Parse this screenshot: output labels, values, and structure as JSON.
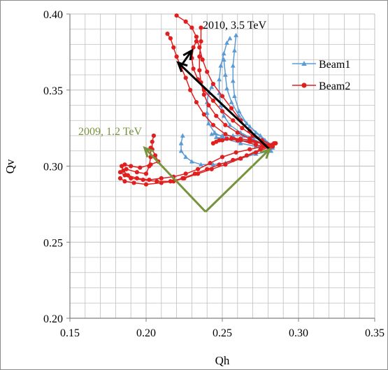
{
  "chart_data": {
    "type": "line",
    "xlabel": "Qh",
    "ylabel": "Qv",
    "xlim": [
      0.15,
      0.35
    ],
    "ylim": [
      0.2,
      0.4
    ],
    "x_major_ticks": [
      "0.15",
      "0.20",
      "0.25",
      "0.30",
      "0.35"
    ],
    "y_major_ticks": [
      "0.20",
      "0.25",
      "0.30",
      "0.35",
      "0.40"
    ],
    "grid": "major and minor (0.01 step)",
    "legend_position": "right",
    "colors": {
      "beam1": "#5b9bd5",
      "beam2": "#e0201f",
      "arrow_2010": "#000000",
      "arrow_2009": "#77933c",
      "label_2009": "#77933c",
      "grid": "#bfbfbf",
      "axis": "#808080"
    },
    "series": [
      {
        "name": "Beam1",
        "marker": "triangle",
        "color": "#5b9bd5",
        "traces": [
          [
            [
              0.282,
              0.313
            ],
            [
              0.276,
              0.315
            ],
            [
              0.27,
              0.318
            ],
            [
              0.262,
              0.322
            ],
            [
              0.255,
              0.327
            ],
            [
              0.251,
              0.333
            ],
            [
              0.249,
              0.34
            ],
            [
              0.248,
              0.348
            ],
            [
              0.248,
              0.357
            ],
            [
              0.249,
              0.366
            ],
            [
              0.251,
              0.374
            ],
            [
              0.253,
              0.381
            ],
            [
              0.255,
              0.384
            ]
          ],
          [
            [
              0.283,
              0.313
            ],
            [
              0.278,
              0.317
            ],
            [
              0.272,
              0.322
            ],
            [
              0.266,
              0.328
            ],
            [
              0.261,
              0.336
            ],
            [
              0.258,
              0.346
            ],
            [
              0.257,
              0.356
            ],
            [
              0.257,
              0.366
            ],
            [
              0.258,
              0.376
            ],
            [
              0.259,
              0.386
            ]
          ],
          [
            [
              0.282,
              0.314
            ],
            [
              0.275,
              0.32
            ],
            [
              0.268,
              0.326
            ],
            [
              0.261,
              0.333
            ],
            [
              0.256,
              0.342
            ],
            [
              0.253,
              0.351
            ],
            [
              0.252,
              0.36
            ],
            [
              0.251,
              0.37
            ]
          ],
          [
            [
              0.283,
              0.312
            ],
            [
              0.272,
              0.313
            ],
            [
              0.262,
              0.315
            ],
            [
              0.252,
              0.318
            ],
            [
              0.245,
              0.322
            ],
            [
              0.241,
              0.328
            ],
            [
              0.24,
              0.335
            ],
            [
              0.24,
              0.342
            ],
            [
              0.241,
              0.348
            ],
            [
              0.243,
              0.352
            ]
          ],
          [
            [
              0.282,
              0.31
            ],
            [
              0.272,
              0.308
            ],
            [
              0.262,
              0.305
            ],
            [
              0.252,
              0.302
            ],
            [
              0.244,
              0.301
            ],
            [
              0.236,
              0.301
            ],
            [
              0.23,
              0.303
            ],
            [
              0.226,
              0.306
            ],
            [
              0.223,
              0.31
            ],
            [
              0.223,
              0.315
            ],
            [
              0.224,
              0.32
            ]
          ],
          [
            [
              0.282,
              0.314
            ],
            [
              0.276,
              0.317
            ],
            [
              0.27,
              0.319
            ],
            [
              0.264,
              0.32
            ],
            [
              0.257,
              0.32
            ],
            [
              0.25,
              0.32
            ],
            [
              0.243,
              0.321
            ]
          ],
          [
            [
              0.283,
              0.314
            ],
            [
              0.278,
              0.315
            ],
            [
              0.272,
              0.316
            ],
            [
              0.262,
              0.317
            ],
            [
              0.252,
              0.318
            ],
            [
              0.246,
              0.319
            ]
          ]
        ]
      },
      {
        "name": "Beam2",
        "marker": "circle",
        "color": "#e0201f",
        "traces": [
          [
            [
              0.281,
              0.312
            ],
            [
              0.272,
              0.314
            ],
            [
              0.262,
              0.317
            ],
            [
              0.252,
              0.321
            ],
            [
              0.244,
              0.327
            ],
            [
              0.238,
              0.334
            ],
            [
              0.233,
              0.342
            ],
            [
              0.229,
              0.35
            ],
            [
              0.226,
              0.358
            ],
            [
              0.223,
              0.365
            ],
            [
              0.22,
              0.372
            ],
            [
              0.218,
              0.378
            ],
            [
              0.216,
              0.384
            ],
            [
              0.214,
              0.387
            ]
          ],
          [
            [
              0.282,
              0.313
            ],
            [
              0.276,
              0.316
            ],
            [
              0.27,
              0.32
            ],
            [
              0.263,
              0.325
            ],
            [
              0.257,
              0.33
            ],
            [
              0.25,
              0.336
            ],
            [
              0.244,
              0.343
            ],
            [
              0.238,
              0.35
            ],
            [
              0.234,
              0.357
            ],
            [
              0.231,
              0.364
            ],
            [
              0.23,
              0.371
            ],
            [
              0.231,
              0.378
            ],
            [
              0.233,
              0.382
            ]
          ],
          [
            [
              0.283,
              0.313
            ],
            [
              0.276,
              0.315
            ],
            [
              0.268,
              0.318
            ],
            [
              0.26,
              0.322
            ],
            [
              0.252,
              0.327
            ],
            [
              0.246,
              0.333
            ],
            [
              0.241,
              0.34
            ],
            [
              0.238,
              0.347
            ],
            [
              0.236,
              0.355
            ],
            [
              0.235,
              0.363
            ],
            [
              0.235,
              0.372
            ],
            [
              0.236,
              0.382
            ],
            [
              0.236,
              0.391
            ]
          ],
          [
            [
              0.283,
              0.314
            ],
            [
              0.276,
              0.317
            ],
            [
              0.268,
              0.323
            ],
            [
              0.262,
              0.33
            ],
            [
              0.256,
              0.338
            ],
            [
              0.25,
              0.346
            ],
            [
              0.244,
              0.354
            ],
            [
              0.24,
              0.362
            ],
            [
              0.237,
              0.37
            ],
            [
              0.235,
              0.378
            ],
            [
              0.233,
              0.385
            ],
            [
              0.23,
              0.391
            ],
            [
              0.226,
              0.395
            ],
            [
              0.22,
              0.399
            ]
          ],
          [
            [
              0.283,
              0.313
            ],
            [
              0.276,
              0.315
            ],
            [
              0.268,
              0.317
            ],
            [
              0.262,
              0.318
            ],
            [
              0.256,
              0.318
            ],
            [
              0.25,
              0.317
            ],
            [
              0.246,
              0.316
            ]
          ],
          [
            [
              0.283,
              0.314
            ],
            [
              0.276,
              0.315
            ],
            [
              0.268,
              0.316
            ],
            [
              0.26,
              0.317
            ],
            [
              0.253,
              0.318
            ],
            [
              0.248,
              0.317
            ],
            [
              0.244,
              0.315
            ]
          ],
          [
            [
              0.285,
              0.315
            ],
            [
              0.277,
              0.313
            ],
            [
              0.268,
              0.311
            ],
            [
              0.259,
              0.309
            ],
            [
              0.25,
              0.306
            ],
            [
              0.242,
              0.302
            ],
            [
              0.234,
              0.298
            ],
            [
              0.226,
              0.295
            ],
            [
              0.218,
              0.293
            ],
            [
              0.21,
              0.292
            ],
            [
              0.202,
              0.291
            ],
            [
              0.194,
              0.292
            ],
            [
              0.188,
              0.294
            ],
            [
              0.185,
              0.297
            ],
            [
              0.184,
              0.3
            ],
            [
              0.186,
              0.301
            ],
            [
              0.19,
              0.3
            ],
            [
              0.196,
              0.299
            ],
            [
              0.203,
              0.301
            ],
            [
              0.208,
              0.303
            ],
            [
              0.206,
              0.307
            ],
            [
              0.204,
              0.311
            ],
            [
              0.204,
              0.316
            ],
            [
              0.205,
              0.32
            ]
          ],
          [
            [
              0.284,
              0.315
            ],
            [
              0.275,
              0.311
            ],
            [
              0.266,
              0.307
            ],
            [
              0.257,
              0.304
            ],
            [
              0.248,
              0.301
            ],
            [
              0.24,
              0.298
            ],
            [
              0.232,
              0.295
            ],
            [
              0.224,
              0.292
            ],
            [
              0.216,
              0.29
            ],
            [
              0.207,
              0.29
            ],
            [
              0.198,
              0.291
            ],
            [
              0.19,
              0.292
            ],
            [
              0.186,
              0.294
            ],
            [
              0.183,
              0.296
            ],
            [
              0.187,
              0.298
            ],
            [
              0.194,
              0.296
            ],
            [
              0.2,
              0.295
            ],
            [
              0.202,
              0.3
            ],
            [
              0.203,
              0.306
            ],
            [
              0.203,
              0.312
            ]
          ],
          [
            [
              0.282,
              0.313
            ],
            [
              0.272,
              0.309
            ],
            [
              0.262,
              0.305
            ],
            [
              0.252,
              0.301
            ],
            [
              0.243,
              0.298
            ],
            [
              0.234,
              0.295
            ],
            [
              0.225,
              0.292
            ],
            [
              0.218,
              0.29
            ],
            [
              0.21,
              0.289
            ],
            [
              0.2,
              0.288
            ],
            [
              0.192,
              0.289
            ],
            [
              0.186,
              0.29
            ],
            [
              0.183,
              0.292
            ]
          ]
        ]
      }
    ],
    "annotations": [
      {
        "text": "2010, 3.5 TeV",
        "color": "#000000",
        "arrows": [
          [
            [
              0.281,
              0.311
            ],
            [
              0.221,
              0.368
            ]
          ],
          [
            [
              0.223,
              0.366
            ],
            [
              0.23,
              0.376
            ]
          ]
        ]
      },
      {
        "text": "2009, 1.2 TeV",
        "color": "#77933c",
        "arrows": [
          [
            [
              0.239,
              0.27
            ],
            [
              0.199,
              0.312
            ]
          ],
          [
            [
              0.239,
              0.27
            ],
            [
              0.281,
              0.311
            ]
          ],
          [
            [
              0.239,
              0.3
            ],
            [
              0.199,
              0.312
            ]
          ],
          [
            [
              0.239,
              0.3
            ],
            [
              0.281,
              0.311
            ]
          ]
        ]
      }
    ]
  }
}
